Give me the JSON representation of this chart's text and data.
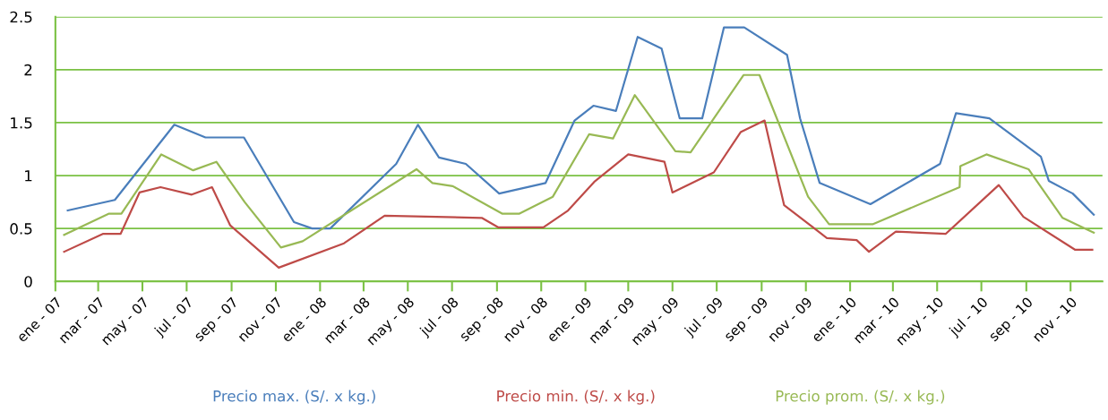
{
  "chart_data": {
    "type": "line",
    "ylim": [
      0,
      2.5
    ],
    "yticks": [
      0,
      0.5,
      1,
      1.5,
      2,
      2.5
    ],
    "xlim": [
      "2007-01-01",
      "2010-12-15"
    ],
    "xticks": [
      {
        "value": "2007-01",
        "label": "ene - 07"
      },
      {
        "value": "2007-03",
        "label": "mar - 07"
      },
      {
        "value": "2007-05",
        "label": "may - 07"
      },
      {
        "value": "2007-07",
        "label": "jul - 07"
      },
      {
        "value": "2007-09",
        "label": "sep - 07"
      },
      {
        "value": "2007-11",
        "label": "nov - 07"
      },
      {
        "value": "2008-01",
        "label": "ene - 08"
      },
      {
        "value": "2008-03",
        "label": "mar - 08"
      },
      {
        "value": "2008-05",
        "label": "may - 08"
      },
      {
        "value": "2008-07",
        "label": "jul - 08"
      },
      {
        "value": "2008-09",
        "label": "sep - 08"
      },
      {
        "value": "2008-11",
        "label": "nov - 08"
      },
      {
        "value": "2009-01",
        "label": "ene - 09"
      },
      {
        "value": "2009-03",
        "label": "mar - 09"
      },
      {
        "value": "2009-05",
        "label": "may - 09"
      },
      {
        "value": "2009-07",
        "label": "jul - 09"
      },
      {
        "value": "2009-09",
        "label": "sep - 09"
      },
      {
        "value": "2009-11",
        "label": "nov - 09"
      },
      {
        "value": "2010-01",
        "label": "ene - 10"
      },
      {
        "value": "2010-03",
        "label": "mar - 10"
      },
      {
        "value": "2010-05",
        "label": "may - 10"
      },
      {
        "value": "2010-07",
        "label": "jul - 10"
      },
      {
        "value": "2010-09",
        "label": "sep - 10"
      },
      {
        "value": "2010-11",
        "label": "nov - 10"
      }
    ],
    "grid": "y",
    "legend": "bottom",
    "marker": "none",
    "line_style": "solid",
    "series": [
      {
        "name": "Precio max. (S/. x kg.)",
        "color": "#4a7ebb",
        "x": [
          "2007-01-18",
          "2007-03-24",
          "2007-06-14",
          "2007-07-27",
          "2007-09-18",
          "2007-11-26",
          "2007-12-21",
          "2008-01-15",
          "2008-04-15",
          "2008-05-15",
          "2008-06-13",
          "2008-07-20",
          "2008-09-04",
          "2008-11-07",
          "2008-12-17",
          "2009-01-12",
          "2009-02-12",
          "2009-03-14",
          "2009-04-16",
          "2009-05-11",
          "2009-06-11",
          "2009-07-11",
          "2009-08-08",
          "2009-10-06",
          "2009-10-24",
          "2009-11-20",
          "2010-01-29",
          "2010-05-05",
          "2010-05-27",
          "2010-07-12",
          "2010-09-21",
          "2010-10-02",
          "2010-11-04",
          "2010-12-03"
        ],
        "values": [
          0.67,
          0.77,
          1.48,
          1.36,
          1.36,
          0.56,
          0.5,
          0.5,
          1.11,
          1.48,
          1.17,
          1.11,
          0.83,
          0.93,
          1.52,
          1.66,
          1.61,
          2.31,
          2.2,
          1.54,
          1.54,
          2.4,
          2.4,
          2.14,
          1.54,
          0.93,
          0.73,
          1.11,
          1.59,
          1.54,
          1.18,
          0.95,
          0.83,
          0.63
        ]
      },
      {
        "name": "Precio min. (S/. x kg.)",
        "color": "#be4b48",
        "x": [
          "2007-01-13",
          "2007-03-08",
          "2007-04-01",
          "2007-04-27",
          "2007-05-26",
          "2007-07-08",
          "2007-08-05",
          "2007-08-30",
          "2007-11-05",
          "2008-02-03",
          "2008-03-30",
          "2008-08-11",
          "2008-09-03",
          "2008-11-04",
          "2008-12-08",
          "2009-01-13",
          "2009-03-01",
          "2009-04-20",
          "2009-05-01",
          "2009-06-27",
          "2009-08-03",
          "2009-09-05",
          "2009-10-02",
          "2009-11-30",
          "2010-01-10",
          "2010-01-27",
          "2010-03-05",
          "2010-05-13",
          "2010-07-25",
          "2010-08-28",
          "2010-11-07",
          "2010-12-01"
        ],
        "values": [
          0.28,
          0.45,
          0.45,
          0.84,
          0.89,
          0.82,
          0.89,
          0.53,
          0.13,
          0.36,
          0.62,
          0.6,
          0.51,
          0.51,
          0.67,
          0.94,
          1.2,
          1.13,
          0.84,
          1.03,
          1.41,
          1.52,
          0.72,
          0.41,
          0.39,
          0.28,
          0.47,
          0.45,
          0.91,
          0.61,
          0.3,
          0.3
        ]
      },
      {
        "name": "Precio prom. (S/. x kg.)",
        "color": "#98b954",
        "x": [
          "2007-01-13",
          "2007-03-16",
          "2007-04-02",
          "2007-05-27",
          "2007-07-10",
          "2007-08-11",
          "2007-09-19",
          "2007-11-08",
          "2007-12-08",
          "2008-05-13",
          "2008-06-04",
          "2008-07-02",
          "2008-09-08",
          "2008-10-02",
          "2008-11-17",
          "2009-01-06",
          "2009-02-08",
          "2009-03-10",
          "2009-05-05",
          "2009-05-26",
          "2009-08-07",
          "2009-08-29",
          "2009-11-04",
          "2009-12-03",
          "2010-02-01",
          "2010-06-01",
          "2010-06-02",
          "2010-07-08",
          "2010-09-04",
          "2010-10-21",
          "2010-12-03"
        ],
        "values": [
          0.44,
          0.64,
          0.64,
          1.2,
          1.05,
          1.13,
          0.75,
          0.32,
          0.38,
          1.06,
          0.93,
          0.9,
          0.64,
          0.64,
          0.8,
          1.39,
          1.35,
          1.76,
          1.23,
          1.22,
          1.95,
          1.95,
          0.8,
          0.54,
          0.54,
          0.89,
          1.09,
          1.2,
          1.06,
          0.6,
          0.46
        ]
      }
    ]
  }
}
